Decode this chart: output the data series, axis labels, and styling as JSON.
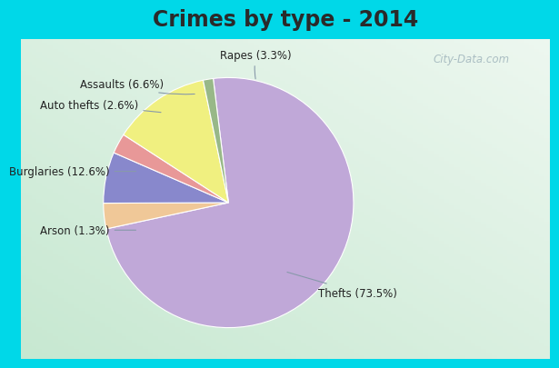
{
  "title": "Crimes by type - 2014",
  "title_fontsize": 17,
  "title_color": "#2a2a2a",
  "labels": [
    "Thefts",
    "Rapes",
    "Assaults",
    "Auto thefts",
    "Burglaries",
    "Arson"
  ],
  "values": [
    73.5,
    3.3,
    6.6,
    2.6,
    12.6,
    1.3
  ],
  "colors": [
    "#c0a8d8",
    "#f0c898",
    "#8888cc",
    "#e89898",
    "#f0f080",
    "#98b888"
  ],
  "label_texts": [
    "Thefts (73.5%)",
    "Rapes (3.3%)",
    "Assaults (6.6%)",
    "Auto thefts (2.6%)",
    "Burglaries (12.6%)",
    "Arson (1.3%)"
  ],
  "border_color": "#00d8e8",
  "border_thickness": 10,
  "bg_color_topleft": "#d0ece0",
  "bg_color_bottomleft": "#c0e8d0",
  "bg_color_topright": "#e8f4f0",
  "watermark": "City-Data.com",
  "startangle": 97
}
